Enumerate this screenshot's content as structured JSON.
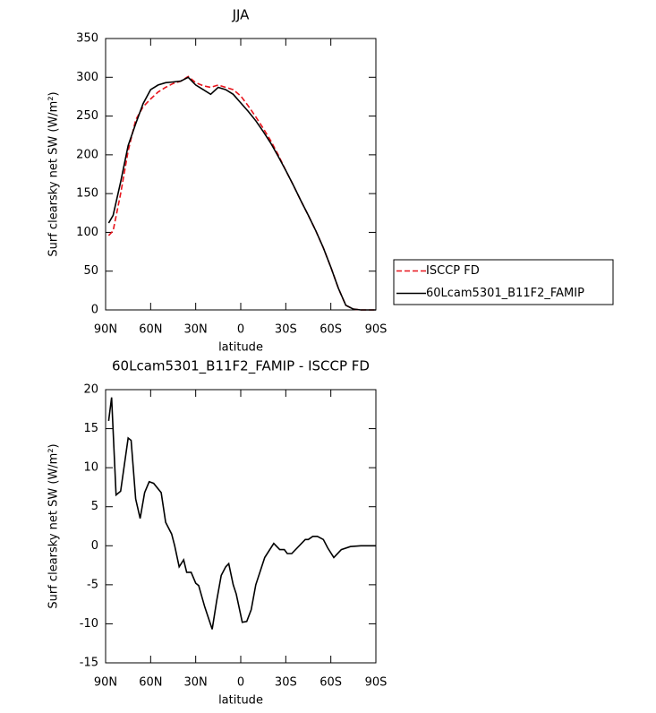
{
  "chart_data": [
    {
      "type": "line",
      "title": "JJA",
      "xlabel": "latitude",
      "ylabel": "Surf clearsky net SW (W/m²)",
      "x": [
        88,
        85,
        80,
        75,
        70,
        65,
        60,
        55,
        50,
        45,
        40,
        35,
        30,
        25,
        20,
        15,
        10,
        5,
        0,
        -5,
        -10,
        -15,
        -20,
        -25,
        -30,
        -35,
        -40,
        -45,
        -50,
        -55,
        -60,
        -65,
        -70,
        -75,
        -80,
        -85,
        -90
      ],
      "series": [
        {
          "name": "ISCCP FD",
          "color": "#e8141c",
          "style": "dashed",
          "values": [
            96,
            102,
            150,
            205,
            245,
            262,
            272,
            281,
            287,
            292,
            295,
            301,
            293,
            289,
            287,
            290,
            287,
            284,
            276,
            263,
            249,
            234,
            218,
            200,
            180,
            161,
            141,
            122,
            102,
            80,
            55,
            28,
            6,
            1,
            0,
            0,
            0
          ]
        },
        {
          "name": "60Lcam5301_B11F2_FAMIP",
          "color": "#000000",
          "style": "solid",
          "values": [
            112,
            122,
            165,
            212,
            240,
            266,
            284,
            290,
            293,
            294,
            295,
            300,
            290,
            284,
            278,
            287,
            284,
            278,
            267,
            256,
            244,
            230,
            215,
            198,
            180,
            161,
            141,
            122,
            102,
            80,
            55,
            28,
            6,
            1,
            0,
            0,
            0
          ]
        }
      ],
      "xlim": [
        90,
        -90
      ],
      "ylim": [
        0,
        350
      ],
      "xticks": [
        {
          "value": 90,
          "label": "90N"
        },
        {
          "value": 60,
          "label": "60N"
        },
        {
          "value": 30,
          "label": "30N"
        },
        0,
        {
          "value": -30,
          "label": "30S"
        },
        {
          "value": -60,
          "label": "60S"
        },
        {
          "value": -90,
          "label": "90S"
        }
      ],
      "yticks": [
        0,
        50,
        100,
        150,
        200,
        250,
        300,
        350
      ],
      "legend": "right"
    },
    {
      "type": "line",
      "title": "60Lcam5301_B11F2_FAMIP - ISCCP FD",
      "xlabel": "latitude",
      "ylabel": "Surf clearsky net SW (W/m²)",
      "x": [
        88,
        86,
        83,
        80,
        75,
        73,
        70,
        67,
        64,
        61,
        58,
        53,
        50,
        46,
        44,
        41,
        38,
        36,
        33,
        30,
        28,
        24,
        19,
        16,
        13,
        10,
        8,
        5,
        3,
        -1,
        -4,
        -7,
        -10,
        -16,
        -22,
        -26,
        -29,
        -31,
        -34,
        -43,
        -45,
        -48,
        -51,
        -55,
        -58,
        -62,
        -67,
        -73,
        -80,
        -90
      ],
      "values": [
        16,
        19,
        6.5,
        7,
        13.8,
        13.5,
        6,
        3.5,
        6.8,
        8.2,
        8,
        6.8,
        3,
        1.5,
        0,
        -2.7,
        -1.8,
        -3.4,
        -3.4,
        -4.8,
        -5.1,
        -7.8,
        -10.7,
        -7,
        -3.8,
        -2.7,
        -2.3,
        -5,
        -6.2,
        -9.8,
        -9.7,
        -8.2,
        -5,
        -1.5,
        0.3,
        -0.5,
        -0.5,
        -1,
        -1,
        0.8,
        0.8,
        1.2,
        1.2,
        0.8,
        -0.3,
        -1.5,
        -0.5,
        -0.1,
        0,
        0
      ],
      "color": "#000000",
      "xlim": [
        90,
        -90
      ],
      "ylim": [
        -15,
        20
      ],
      "xticks": [
        {
          "value": 90,
          "label": "90N"
        },
        {
          "value": 60,
          "label": "60N"
        },
        {
          "value": 30,
          "label": "30N"
        },
        0,
        {
          "value": -30,
          "label": "30S"
        },
        {
          "value": -60,
          "label": "60S"
        },
        {
          "value": -90,
          "label": "90S"
        }
      ],
      "yticks": [
        -15,
        -10,
        -5,
        0,
        5,
        10,
        15,
        20
      ]
    }
  ]
}
